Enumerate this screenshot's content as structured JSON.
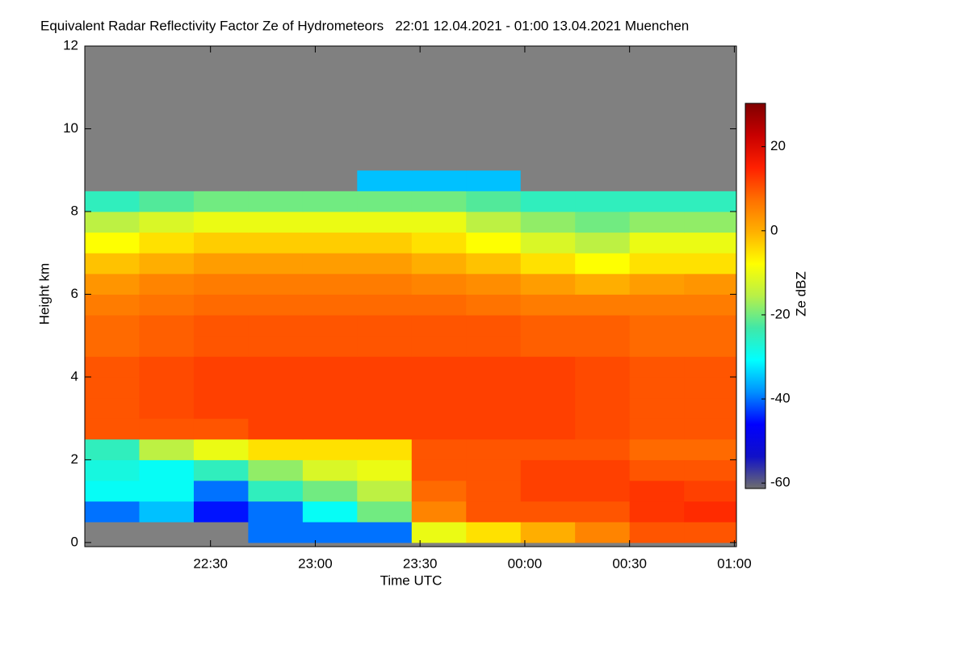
{
  "chart_data": {
    "type": "heatmap",
    "title": "Equivalent Radar Reflectivity Factor Ze of Hydrometeors   22:01 12.04.2021 - 01:00 13.04.2021 Muenchen",
    "x_label": "Time UTC",
    "y_label": "Height km",
    "colorbar_label": "Ze dBZ",
    "xlim": [
      21.9,
      25.01
    ],
    "xticks": [
      {
        "value": 22.5,
        "label": "22:30"
      },
      {
        "value": 23,
        "label": "23:00"
      },
      {
        "value": 23.5,
        "label": "23:30"
      },
      {
        "value": 24,
        "label": "00:00"
      },
      {
        "value": 24.5,
        "label": "00:30"
      },
      {
        "value": 25,
        "label": "01:00"
      }
    ],
    "ylim": [
      -0.1,
      12.0
    ],
    "yticks": [
      0,
      2,
      4,
      6,
      8,
      10,
      12
    ],
    "clim": [
      -61.3,
      30.3
    ],
    "cticks": [
      -60,
      -40,
      -20,
      0,
      20
    ],
    "colormap": [
      "#6e6e6e",
      "#1010c8",
      "#0000ff",
      "#0090ff",
      "#00ffff",
      "#40e8a8",
      "#b8f048",
      "#ffff00",
      "#ffb000",
      "#ff7000",
      "#ff2000",
      "#c80000",
      "#800000"
    ],
    "missing_color": "#808080",
    "xbins": [
      21.9,
      22.16,
      22.42,
      22.68,
      22.94,
      23.2,
      23.46,
      23.72,
      23.98,
      24.24,
      24.5,
      24.76,
      25.01
    ],
    "ybins": [
      0,
      0.5,
      1,
      1.5,
      2,
      2.5,
      3,
      3.5,
      4,
      4.5,
      5,
      5.5,
      6,
      6.5,
      7,
      7.5,
      8,
      8.5,
      9,
      9.5,
      10,
      10.5,
      11,
      11.5,
      12
    ],
    "values": [
      [
        null,
        null,
        null,
        -40,
        -40,
        -40,
        -10,
        -5,
        0,
        5,
        10,
        10
      ],
      [
        -40,
        -35,
        -45,
        -40,
        -30,
        -20,
        5,
        10,
        10,
        10,
        13,
        14
      ],
      [
        -30,
        -30,
        -40,
        -25,
        -20,
        -15,
        8,
        10,
        12,
        12,
        13,
        12
      ],
      [
        -28,
        -30,
        -25,
        -18,
        -12,
        -10,
        10,
        10,
        12,
        12,
        10,
        10
      ],
      [
        -25,
        -15,
        -10,
        -5,
        -5,
        -5,
        10,
        10,
        10,
        10,
        8,
        8
      ],
      [
        10,
        10,
        10,
        12,
        12,
        12,
        12,
        12,
        12,
        11,
        10,
        10
      ],
      [
        10,
        11,
        12,
        12,
        12,
        12,
        12,
        12,
        12,
        11,
        10,
        10
      ],
      [
        10,
        11,
        12,
        12,
        12,
        12,
        12,
        12,
        12,
        11,
        10,
        10
      ],
      [
        10,
        11,
        12,
        12,
        12,
        12,
        12,
        12,
        12,
        11,
        10,
        10
      ],
      [
        8,
        9,
        10,
        10,
        10,
        10,
        10,
        10,
        9,
        9,
        8,
        8
      ],
      [
        8,
        9,
        10,
        10,
        10,
        10,
        10,
        10,
        9,
        9,
        8,
        8
      ],
      [
        6,
        7,
        8,
        8,
        8,
        8,
        8,
        7,
        6,
        6,
        6,
        6
      ],
      [
        3,
        5,
        6,
        6,
        6,
        6,
        5,
        4,
        2,
        0,
        2,
        3
      ],
      [
        -2,
        0,
        2,
        2,
        2,
        2,
        0,
        -2,
        -5,
        -8,
        -5,
        -5
      ],
      [
        -8,
        -5,
        -3,
        -3,
        -3,
        -3,
        -5,
        -8,
        -12,
        -15,
        -10,
        -10
      ],
      [
        -15,
        -12,
        -10,
        -10,
        -10,
        -10,
        -10,
        -15,
        -18,
        -20,
        -18,
        -18
      ],
      [
        -25,
        -22,
        -20,
        -20,
        -20,
        -20,
        -20,
        -22,
        -25,
        -25,
        -25,
        -25
      ],
      [
        null,
        null,
        null,
        null,
        null,
        -35,
        -35,
        -35,
        null,
        null,
        null,
        null
      ],
      [
        null,
        null,
        null,
        null,
        null,
        null,
        null,
        null,
        null,
        null,
        null,
        null
      ],
      [
        null,
        null,
        null,
        null,
        null,
        null,
        null,
        null,
        null,
        null,
        null,
        null
      ],
      [
        null,
        null,
        null,
        null,
        null,
        null,
        null,
        null,
        null,
        null,
        null,
        null
      ],
      [
        null,
        null,
        null,
        null,
        null,
        null,
        null,
        null,
        null,
        null,
        null,
        null
      ],
      [
        null,
        null,
        null,
        null,
        null,
        null,
        null,
        null,
        null,
        null,
        null,
        null
      ],
      [
        null,
        null,
        null,
        null,
        null,
        null,
        null,
        null,
        null,
        null,
        null,
        null
      ]
    ]
  }
}
